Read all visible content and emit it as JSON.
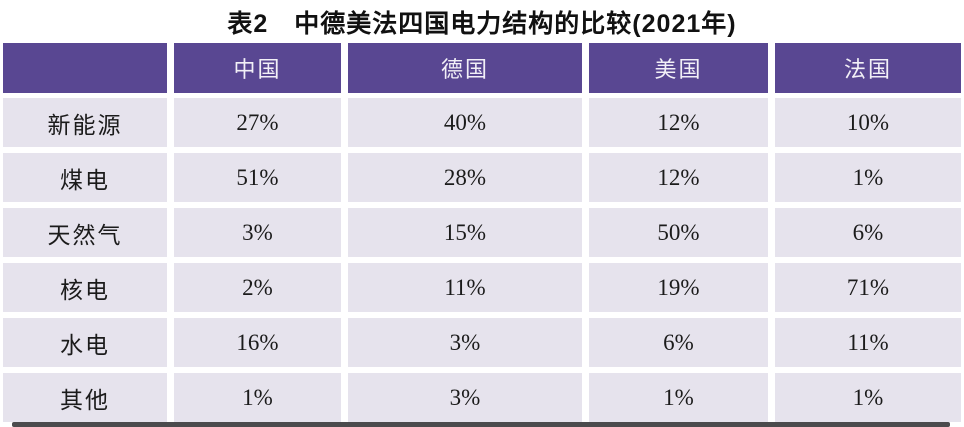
{
  "colors": {
    "header_bg": "#594792",
    "header_text": "#f2f0f7",
    "cell_bg": "#e6e3ed",
    "cell_text": "#1b1b1b",
    "bottom_bar": "#4b4b4d"
  },
  "chart_data": {
    "type": "table",
    "title": "表2　中德美法四国电力结构的比较(2021年)",
    "columns": [
      "",
      "中国",
      "德国",
      "美国",
      "法国"
    ],
    "rows": [
      {
        "label": "新能源",
        "values": [
          "27%",
          "40%",
          "12%",
          "10%"
        ]
      },
      {
        "label": "煤电",
        "values": [
          "51%",
          "28%",
          "12%",
          "1%"
        ]
      },
      {
        "label": "天然气",
        "values": [
          "3%",
          "15%",
          "50%",
          "6%"
        ]
      },
      {
        "label": "核电",
        "values": [
          "2%",
          "11%",
          "19%",
          "71%"
        ]
      },
      {
        "label": "水电",
        "values": [
          "16%",
          "3%",
          "6%",
          "11%"
        ]
      },
      {
        "label": "其他",
        "values": [
          "1%",
          "3%",
          "1%",
          "1%"
        ]
      }
    ]
  }
}
